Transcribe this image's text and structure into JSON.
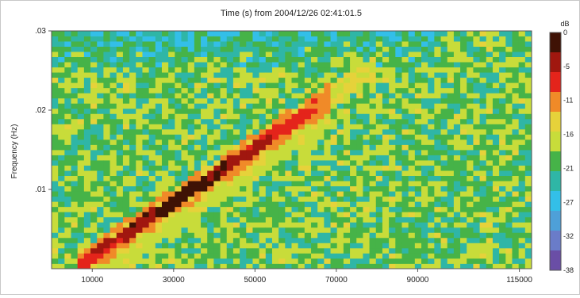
{
  "chart_data": {
    "type": "heatmap",
    "title": "Time (s) from 2004/12/26 02:41:01.5",
    "xlabel": "",
    "ylabel": "Frequency (Hz)",
    "xlim": [
      0,
      118000
    ],
    "ylim": [
      0,
      0.03
    ],
    "x_ticks": [
      {
        "value": 10000,
        "label": "10000"
      },
      {
        "value": 30000,
        "label": "30000"
      },
      {
        "value": 50000,
        "label": "50000"
      },
      {
        "value": 70000,
        "label": "70000"
      },
      {
        "value": 90000,
        "label": "90000"
      },
      {
        "value": 115000,
        "label": "115000"
      }
    ],
    "y_ticks": [
      {
        "value": 0.01,
        "label": ".01"
      },
      {
        "value": 0.02,
        "label": ".02"
      },
      {
        "value": 0.03,
        "label": ".03"
      }
    ],
    "colorbar": {
      "unit": "dB",
      "ticks": [
        "0",
        "-5",
        "-11",
        "-16",
        "-21",
        "-27",
        "-32",
        "-38"
      ],
      "range": [
        -38,
        0
      ],
      "colors": [
        "#3f1205",
        "#a0170f",
        "#e4241b",
        "#f08a28",
        "#e6d23a",
        "#c8dc3a",
        "#46b348",
        "#2fb6a6",
        "#33bfe8",
        "#4ea0d8",
        "#6a7cc9",
        "#6a4ea6"
      ]
    },
    "ridge": {
      "description_values": {
        "start": {
          "x": 7000,
          "freq": 0.0005
        },
        "end": {
          "x": 65000,
          "freq": 0.0205
        },
        "peak_db": -1
      }
    },
    "grid": false,
    "legend": "right"
  }
}
